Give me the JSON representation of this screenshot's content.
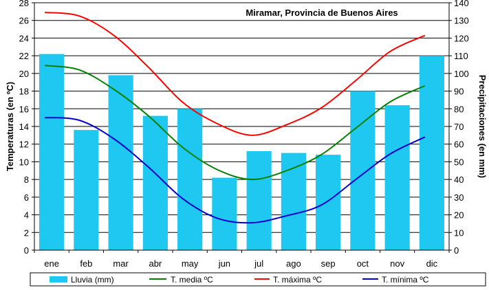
{
  "chart_data": {
    "type": "bar+line",
    "title": "Miramar, Provincia de Buenos Aires",
    "categories": [
      "ene",
      "feb",
      "mar",
      "abr",
      "may",
      "jun",
      "jul",
      "ago",
      "sep",
      "oct",
      "nov",
      "dic"
    ],
    "ylabel_left": "Temperaturas (en ºC)",
    "ylabel_right": "Precipitaciones (en mm)",
    "ylim_left": [
      0,
      28
    ],
    "ylim_right": [
      0,
      140
    ],
    "yticks_left": [
      0,
      2,
      4,
      6,
      8,
      10,
      12,
      14,
      16,
      18,
      20,
      22,
      24,
      26,
      28
    ],
    "yticks_right": [
      0,
      10,
      20,
      30,
      40,
      50,
      60,
      70,
      80,
      90,
      100,
      110,
      120,
      130,
      140
    ],
    "grid": true,
    "legend_position": "bottom",
    "bars": {
      "name": "Lluvia (mm)",
      "axis": "right",
      "color": "#1ec8f0",
      "values": [
        111,
        68,
        99,
        76,
        80,
        41,
        56,
        55,
        54,
        90,
        82,
        110
      ]
    },
    "series": [
      {
        "name": "T. media ºC",
        "axis": "left",
        "color": "#008000",
        "values": [
          20.9,
          20.4,
          18.2,
          15.2,
          11.6,
          9.1,
          8.0,
          9.0,
          10.8,
          13.8,
          16.8,
          18.6
        ]
      },
      {
        "name": "T. máxima ºC",
        "axis": "left",
        "color": "#ff0000",
        "values": [
          26.9,
          26.5,
          24.3,
          20.7,
          16.7,
          14.3,
          13.0,
          14.2,
          16.1,
          19.2,
          22.5,
          24.3
        ]
      },
      {
        "name": "T. mínima ºC",
        "axis": "left",
        "color": "#0000cc",
        "values": [
          15.0,
          14.7,
          12.6,
          9.4,
          5.8,
          3.6,
          3.1,
          3.9,
          5.1,
          8.0,
          10.9,
          12.8
        ]
      }
    ]
  }
}
